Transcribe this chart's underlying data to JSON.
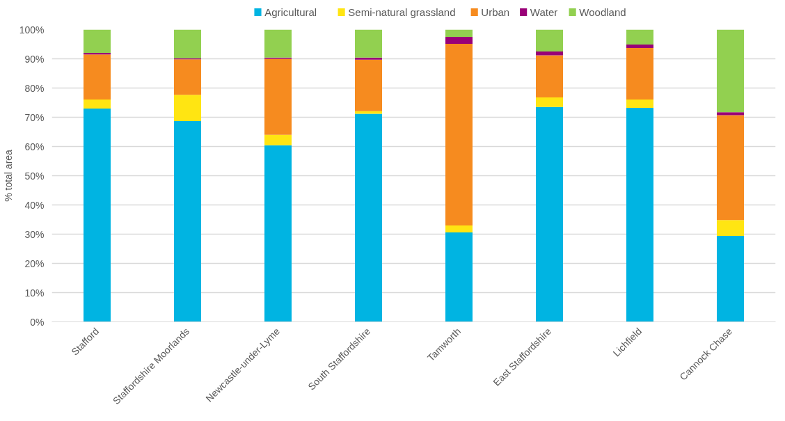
{
  "chart_data": {
    "type": "bar",
    "stacked": true,
    "ylabel": "% total area",
    "categories": [
      "Stafford",
      "Staffordshire Moorlands",
      "Newcastle-under-Lyme",
      "South Staffordshire",
      "Tamworth",
      "East Staffordshire",
      "Lichfield",
      "Cannock Chase"
    ],
    "series": [
      {
        "name": "Agricultural",
        "color": "#00b4e2",
        "values": [
          73.0,
          68.7,
          60.4,
          71.2,
          30.6,
          73.5,
          73.2,
          29.4
        ]
      },
      {
        "name": "Semi-natural grassland",
        "color": "#ffe512",
        "values": [
          3.1,
          9.0,
          3.6,
          0.9,
          2.4,
          3.3,
          2.9,
          5.4
        ]
      },
      {
        "name": "Urban",
        "color": "#f68b1f",
        "values": [
          15.4,
          12.1,
          26.0,
          17.6,
          62.1,
          14.4,
          17.6,
          35.9
        ]
      },
      {
        "name": "Water",
        "color": "#990077",
        "values": [
          0.5,
          0.4,
          0.4,
          0.7,
          2.4,
          1.3,
          1.2,
          1.0
        ]
      },
      {
        "name": "Woodland",
        "color": "#92d050",
        "values": [
          8.0,
          9.8,
          9.6,
          9.6,
          2.5,
          7.5,
          5.1,
          28.3
        ]
      }
    ],
    "ylim": [
      0,
      100
    ],
    "yticks": [
      {
        "value": 0,
        "label": "0%"
      },
      {
        "value": 10,
        "label": "10%"
      },
      {
        "value": 20,
        "label": "20%"
      },
      {
        "value": 30,
        "label": "30%"
      },
      {
        "value": 40,
        "label": "40%"
      },
      {
        "value": 50,
        "label": "50%"
      },
      {
        "value": 60,
        "label": "60%"
      },
      {
        "value": 70,
        "label": "70%"
      },
      {
        "value": 80,
        "label": "80%"
      },
      {
        "value": 90,
        "label": "90%"
      },
      {
        "value": 100,
        "label": "100%"
      }
    ],
    "grid": "y",
    "legend": "top"
  }
}
